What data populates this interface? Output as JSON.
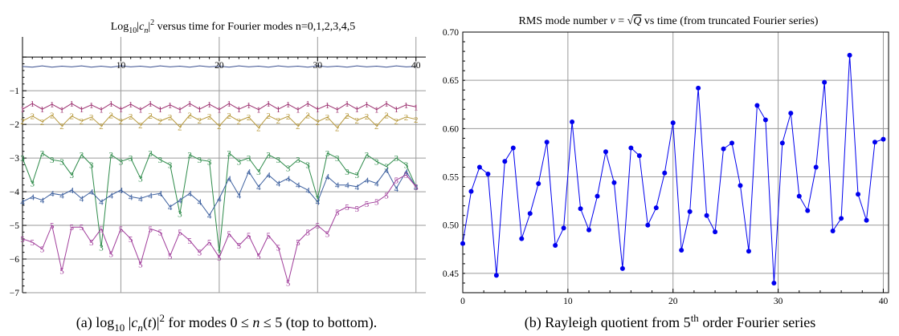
{
  "chart_data": [
    {
      "type": "line",
      "title": "Log10|cn|2 versus time for Fourier modes n=0,1,2,3,4,5",
      "caption": "(a)  log10 |cn(t)|2  for modes  0 ≤ n ≤ 5  (top to bottom).",
      "xlim": [
        0,
        41
      ],
      "ylim": [
        -7,
        0.6
      ],
      "xticks": [
        10,
        20,
        30,
        40
      ],
      "yticks": [
        -1,
        -2,
        -3,
        -4,
        -5,
        -6,
        -7
      ],
      "grid": true,
      "series": [
        {
          "name": "",
          "color": "#3a4f8f",
          "x": [
            0,
            1,
            2,
            3,
            4,
            5,
            6,
            7,
            8,
            9,
            10,
            11,
            12,
            13,
            14,
            15,
            16,
            17,
            18,
            19,
            20,
            21,
            22,
            23,
            24,
            25,
            26,
            27,
            28,
            29,
            30,
            31,
            32,
            33,
            34,
            35,
            36,
            37,
            38,
            39,
            40
          ],
          "values": [
            -0.28,
            -0.3,
            -0.26,
            -0.3,
            -0.27,
            -0.29,
            -0.26,
            -0.3,
            -0.27,
            -0.3,
            -0.26,
            -0.29,
            -0.27,
            -0.3,
            -0.26,
            -0.29,
            -0.27,
            -0.3,
            -0.26,
            -0.29,
            -0.27,
            -0.3,
            -0.26,
            -0.29,
            -0.27,
            -0.3,
            -0.26,
            -0.29,
            -0.27,
            -0.3,
            -0.26,
            -0.29,
            -0.27,
            -0.3,
            -0.26,
            -0.29,
            -0.27,
            -0.3,
            -0.26,
            -0.29,
            -0.28
          ]
        },
        {
          "name": "1",
          "color": "#9b2f6e",
          "x": [
            0,
            1,
            2,
            3,
            4,
            5,
            6,
            7,
            8,
            9,
            10,
            11,
            12,
            13,
            14,
            15,
            16,
            17,
            18,
            19,
            20,
            21,
            22,
            23,
            24,
            25,
            26,
            27,
            28,
            29,
            30,
            31,
            32,
            33,
            34,
            35,
            36,
            37,
            38,
            39,
            40
          ],
          "values": [
            -1.55,
            -1.38,
            -1.55,
            -1.4,
            -1.56,
            -1.38,
            -1.55,
            -1.42,
            -1.56,
            -1.38,
            -1.55,
            -1.4,
            -1.56,
            -1.38,
            -1.55,
            -1.42,
            -1.56,
            -1.38,
            -1.55,
            -1.4,
            -1.56,
            -1.38,
            -1.55,
            -1.42,
            -1.56,
            -1.38,
            -1.55,
            -1.4,
            -1.56,
            -1.38,
            -1.55,
            -1.42,
            -1.56,
            -1.38,
            -1.55,
            -1.4,
            -1.56,
            -1.38,
            -1.55,
            -1.42,
            -1.48
          ]
        },
        {
          "name": "2",
          "color": "#b89a3e",
          "x": [
            0,
            1,
            2,
            3,
            4,
            5,
            6,
            7,
            8,
            9,
            10,
            11,
            12,
            13,
            14,
            15,
            16,
            17,
            18,
            19,
            20,
            21,
            22,
            23,
            24,
            25,
            26,
            27,
            28,
            29,
            30,
            31,
            32,
            33,
            34,
            35,
            36,
            37,
            38,
            39,
            40
          ],
          "values": [
            -1.9,
            -1.75,
            -1.92,
            -1.72,
            -2.05,
            -1.75,
            -1.9,
            -1.78,
            -2.05,
            -1.72,
            -1.9,
            -1.76,
            -2.02,
            -1.74,
            -1.9,
            -1.78,
            -2.08,
            -1.72,
            -1.88,
            -1.76,
            -2.05,
            -1.73,
            -1.9,
            -1.78,
            -2.1,
            -1.74,
            -1.88,
            -1.76,
            -2.05,
            -1.72,
            -1.92,
            -1.78,
            -2.1,
            -1.73,
            -1.88,
            -1.76,
            -2.05,
            -1.72,
            -1.9,
            -1.78,
            -1.85
          ]
        },
        {
          "name": "3",
          "color": "#2e8b4a",
          "x": [
            0,
            1,
            2,
            3,
            4,
            5,
            6,
            7,
            8,
            9,
            10,
            11,
            12,
            13,
            14,
            15,
            16,
            17,
            18,
            19,
            20,
            21,
            22,
            23,
            24,
            25,
            26,
            27,
            28,
            29,
            30,
            31,
            32,
            33,
            34,
            35,
            36,
            37,
            38,
            39,
            40
          ],
          "values": [
            -3.0,
            -3.75,
            -2.85,
            -3.05,
            -3.1,
            -3.5,
            -2.9,
            -3.2,
            -5.65,
            -2.9,
            -3.1,
            -3.0,
            -3.6,
            -2.85,
            -3.05,
            -3.2,
            -4.65,
            -2.9,
            -3.05,
            -3.1,
            -5.8,
            -2.85,
            -3.1,
            -3.0,
            -3.4,
            -2.9,
            -3.05,
            -3.3,
            -3.05,
            -3.2,
            -4.2,
            -2.85,
            -3.0,
            -3.4,
            -3.5,
            -2.9,
            -3.1,
            -3.25,
            -3.0,
            -3.2,
            -3.85
          ]
        },
        {
          "name": "4",
          "color": "#3c5f9e",
          "x": [
            0,
            1,
            2,
            3,
            4,
            5,
            6,
            7,
            8,
            9,
            10,
            11,
            12,
            13,
            14,
            15,
            16,
            17,
            18,
            19,
            20,
            21,
            22,
            23,
            24,
            25,
            26,
            27,
            28,
            29,
            30,
            31,
            32,
            33,
            34,
            35,
            36,
            37,
            38,
            39,
            40
          ],
          "values": [
            -4.3,
            -4.15,
            -4.25,
            -4.05,
            -4.1,
            -3.95,
            -4.2,
            -4.0,
            -4.3,
            -4.1,
            -3.95,
            -4.15,
            -4.2,
            -4.1,
            -4.05,
            -4.45,
            -4.25,
            -4.05,
            -4.3,
            -4.7,
            -4.2,
            -3.6,
            -4.1,
            -3.4,
            -3.85,
            -3.5,
            -3.75,
            -3.6,
            -3.8,
            -3.95,
            -4.3,
            -3.55,
            -3.8,
            -3.8,
            -3.85,
            -3.65,
            -3.75,
            -3.35,
            -3.9,
            -3.4,
            -3.85
          ]
        },
        {
          "name": "5",
          "color": "#a03c9a",
          "x": [
            0,
            1,
            2,
            3,
            4,
            5,
            6,
            7,
            8,
            9,
            10,
            11,
            12,
            13,
            14,
            15,
            16,
            17,
            18,
            19,
            20,
            21,
            22,
            23,
            24,
            25,
            26,
            27,
            28,
            29,
            30,
            31,
            32,
            33,
            34,
            35,
            36,
            37,
            38,
            39,
            40
          ],
          "values": [
            -5.4,
            -5.5,
            -5.7,
            -5.0,
            -6.35,
            -5.05,
            -5.05,
            -5.5,
            -5.1,
            -5.85,
            -5.1,
            -5.4,
            -6.15,
            -5.1,
            -5.2,
            -5.9,
            -5.2,
            -5.45,
            -5.8,
            -5.5,
            -5.95,
            -5.25,
            -5.6,
            -5.3,
            -5.9,
            -5.3,
            -5.65,
            -6.7,
            -5.5,
            -5.2,
            -5.0,
            -5.25,
            -4.6,
            -4.45,
            -4.5,
            -4.35,
            -4.3,
            -4.1,
            -3.65,
            -3.5,
            -3.85
          ]
        }
      ]
    },
    {
      "type": "line",
      "title": "RMS mode number ν = √Q  vs time (from truncated Fourier series)",
      "caption": "(b)  Rayleigh quotient from 5th order Fourier series",
      "xlim": [
        0,
        40.5
      ],
      "ylim": [
        0.43,
        0.7
      ],
      "xticks": [
        0,
        10,
        20,
        30,
        40
      ],
      "yticks": [
        0.45,
        0.5,
        0.55,
        0.6,
        0.65,
        0.7
      ],
      "grid": true,
      "series": [
        {
          "name": "",
          "color": "#0000ee",
          "markers": true,
          "x": [
            0,
            0.8,
            1.6,
            2.4,
            3.2,
            4.0,
            4.8,
            5.6,
            6.4,
            7.2,
            8.0,
            8.8,
            9.6,
            10.4,
            11.2,
            12.0,
            12.8,
            13.6,
            14.4,
            15.2,
            16.0,
            16.8,
            17.6,
            18.4,
            19.2,
            20.0,
            20.8,
            21.6,
            22.4,
            23.2,
            24.0,
            24.8,
            25.6,
            26.4,
            27.2,
            28.0,
            28.8,
            29.6,
            30.4,
            31.2,
            32.0,
            32.8,
            33.6,
            34.4,
            35.2,
            36.0,
            36.8,
            37.6,
            38.4,
            39.2,
            40.0
          ],
          "values": [
            0.481,
            0.535,
            0.56,
            0.553,
            0.448,
            0.566,
            0.58,
            0.486,
            0.512,
            0.543,
            0.586,
            0.479,
            0.497,
            0.607,
            0.517,
            0.495,
            0.53,
            0.576,
            0.544,
            0.455,
            0.58,
            0.572,
            0.5,
            0.518,
            0.554,
            0.606,
            0.474,
            0.514,
            0.642,
            0.51,
            0.493,
            0.579,
            0.585,
            0.541,
            0.473,
            0.624,
            0.609,
            0.44,
            0.585,
            0.616,
            0.53,
            0.515,
            0.56,
            0.648,
            0.494,
            0.507,
            0.676,
            0.532,
            0.505,
            0.586,
            0.589
          ]
        }
      ]
    }
  ]
}
